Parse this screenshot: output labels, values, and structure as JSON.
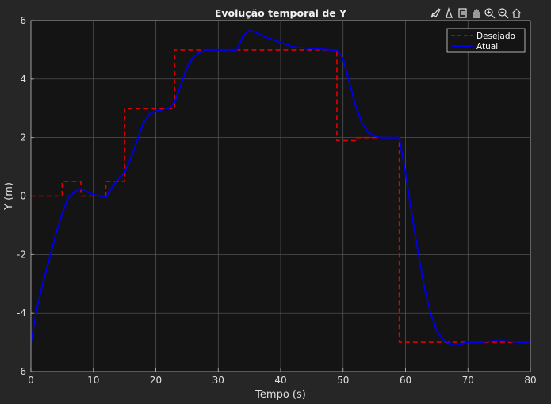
{
  "toolbar": {
    "tools": [
      "brush-icon",
      "datatip-icon",
      "legend-icon",
      "pan-icon",
      "zoom-in-icon",
      "zoom-out-icon",
      "home-icon"
    ]
  },
  "colors": {
    "figure_bg": "#262626",
    "axes_bg": "#141414",
    "grid": "#5a5a5a",
    "axis_text": "#e0e0e0",
    "desired": "#e00000",
    "actual": "#0000e6"
  },
  "chart_data": {
    "type": "line",
    "title": "Evolução temporal de Y",
    "xlabel": "Tempo (s)",
    "ylabel": "Y (m)",
    "xlim": [
      0,
      80
    ],
    "ylim": [
      -6,
      6
    ],
    "xticks": [
      0,
      10,
      20,
      30,
      40,
      50,
      60,
      70,
      80
    ],
    "yticks": [
      -6,
      -4,
      -2,
      0,
      2,
      4,
      6
    ],
    "xtick_labels": [
      "0",
      "10",
      "20",
      "30",
      "40",
      "50",
      "60",
      "70",
      "80"
    ],
    "ytick_labels": [
      "-6",
      "-4",
      "-2",
      "0",
      "2",
      "4",
      "6"
    ],
    "grid": true,
    "legend_position": "top-right",
    "series": [
      {
        "name": "Desejado",
        "style": "dashed",
        "color": "#e00000",
        "x": [
          0,
          5,
          5,
          8,
          8,
          12,
          12,
          15,
          15,
          23,
          23,
          49,
          49,
          52,
          52,
          59,
          59,
          69,
          69,
          80
        ],
        "y": [
          0,
          0,
          0.5,
          0.5,
          0,
          0,
          0.5,
          0.5,
          3,
          3,
          5,
          5,
          1.9,
          1.9,
          2,
          2,
          -5,
          -5,
          -5,
          -5
        ]
      },
      {
        "name": "Atual",
        "style": "solid",
        "color": "#0000e6",
        "x": [
          0,
          1,
          2,
          3,
          4,
          5,
          6,
          7,
          8,
          9,
          10,
          11,
          12,
          13,
          14,
          15,
          16,
          17,
          18,
          19,
          20,
          21,
          22,
          23,
          24,
          25,
          26,
          27,
          28,
          29,
          30,
          32,
          33,
          34,
          35,
          36,
          37,
          38,
          40,
          42,
          45,
          48,
          49,
          50,
          51,
          52,
          53,
          54,
          55,
          56,
          57,
          58,
          59,
          60,
          61,
          62,
          63,
          64,
          65,
          66,
          67,
          68,
          69,
          70,
          72,
          74,
          76,
          78,
          80
        ],
        "y": [
          -5,
          -3.8,
          -2.9,
          -2.1,
          -1.3,
          -0.6,
          -0.05,
          0.15,
          0.25,
          0.15,
          0.05,
          0,
          -0.05,
          0.3,
          0.6,
          0.8,
          1.3,
          1.9,
          2.5,
          2.8,
          2.9,
          2.95,
          3,
          3.2,
          3.8,
          4.4,
          4.75,
          4.9,
          5,
          5,
          5,
          5,
          5,
          5.5,
          5.65,
          5.6,
          5.5,
          5.4,
          5.25,
          5.1,
          5.05,
          5,
          5,
          4.7,
          3.9,
          3.1,
          2.5,
          2.2,
          2.05,
          2,
          2,
          2,
          2,
          0.8,
          -0.6,
          -1.9,
          -3.1,
          -4.0,
          -4.6,
          -4.9,
          -5.05,
          -5.1,
          -5.05,
          -5,
          -5,
          -4.95,
          -4.95,
          -5,
          -5
        ]
      }
    ]
  }
}
